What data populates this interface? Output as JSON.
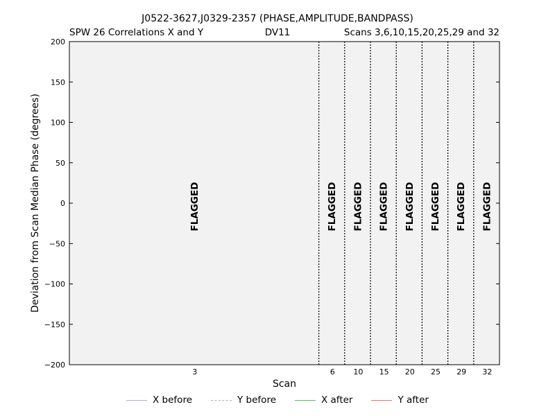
{
  "chart_data": {
    "type": "line",
    "title": "J0522-3627,J0329-2357 (PHASE,AMPLITUDE,BANDPASS)",
    "subtitle_left": "SPW 26 Correlations X and Y",
    "subtitle_center": "DV11",
    "subtitle_right": "Scans 3,6,10,15,20,25,29 and 32",
    "xlabel": "Scan",
    "ylabel": "Deviation from Scan Median Phase (degrees)",
    "ylim": [
      -200,
      200
    ],
    "yticks": [
      200,
      150,
      100,
      50,
      0,
      -50,
      -100,
      -150,
      -200
    ],
    "ytick_labels": [
      "200",
      "150",
      "100",
      "50",
      "0",
      "−50",
      "−100",
      "−150",
      "−200"
    ],
    "scans": [
      {
        "label": "3",
        "start": 0.0,
        "end": 0.58
      },
      {
        "label": "6",
        "start": 0.58,
        "end": 0.64
      },
      {
        "label": "10",
        "start": 0.64,
        "end": 0.7
      },
      {
        "label": "15",
        "start": 0.7,
        "end": 0.76
      },
      {
        "label": "20",
        "start": 0.76,
        "end": 0.82
      },
      {
        "label": "25",
        "start": 0.82,
        "end": 0.88
      },
      {
        "label": "29",
        "start": 0.88,
        "end": 0.94
      },
      {
        "label": "32",
        "start": 0.94,
        "end": 1.0
      }
    ],
    "flag_text": "FLAGGED",
    "series": [
      {
        "name": "X before",
        "color": "#aab0d0",
        "dash": "solid",
        "values": []
      },
      {
        "name": "Y before",
        "color": "#b0b0b0",
        "dash": "dashed",
        "values": []
      },
      {
        "name": "X after",
        "color": "#5cb85c",
        "dash": "solid",
        "values": []
      },
      {
        "name": "Y after",
        "color": "#f07060",
        "dash": "solid",
        "values": []
      }
    ],
    "plot_background": "#f2f2f2"
  }
}
